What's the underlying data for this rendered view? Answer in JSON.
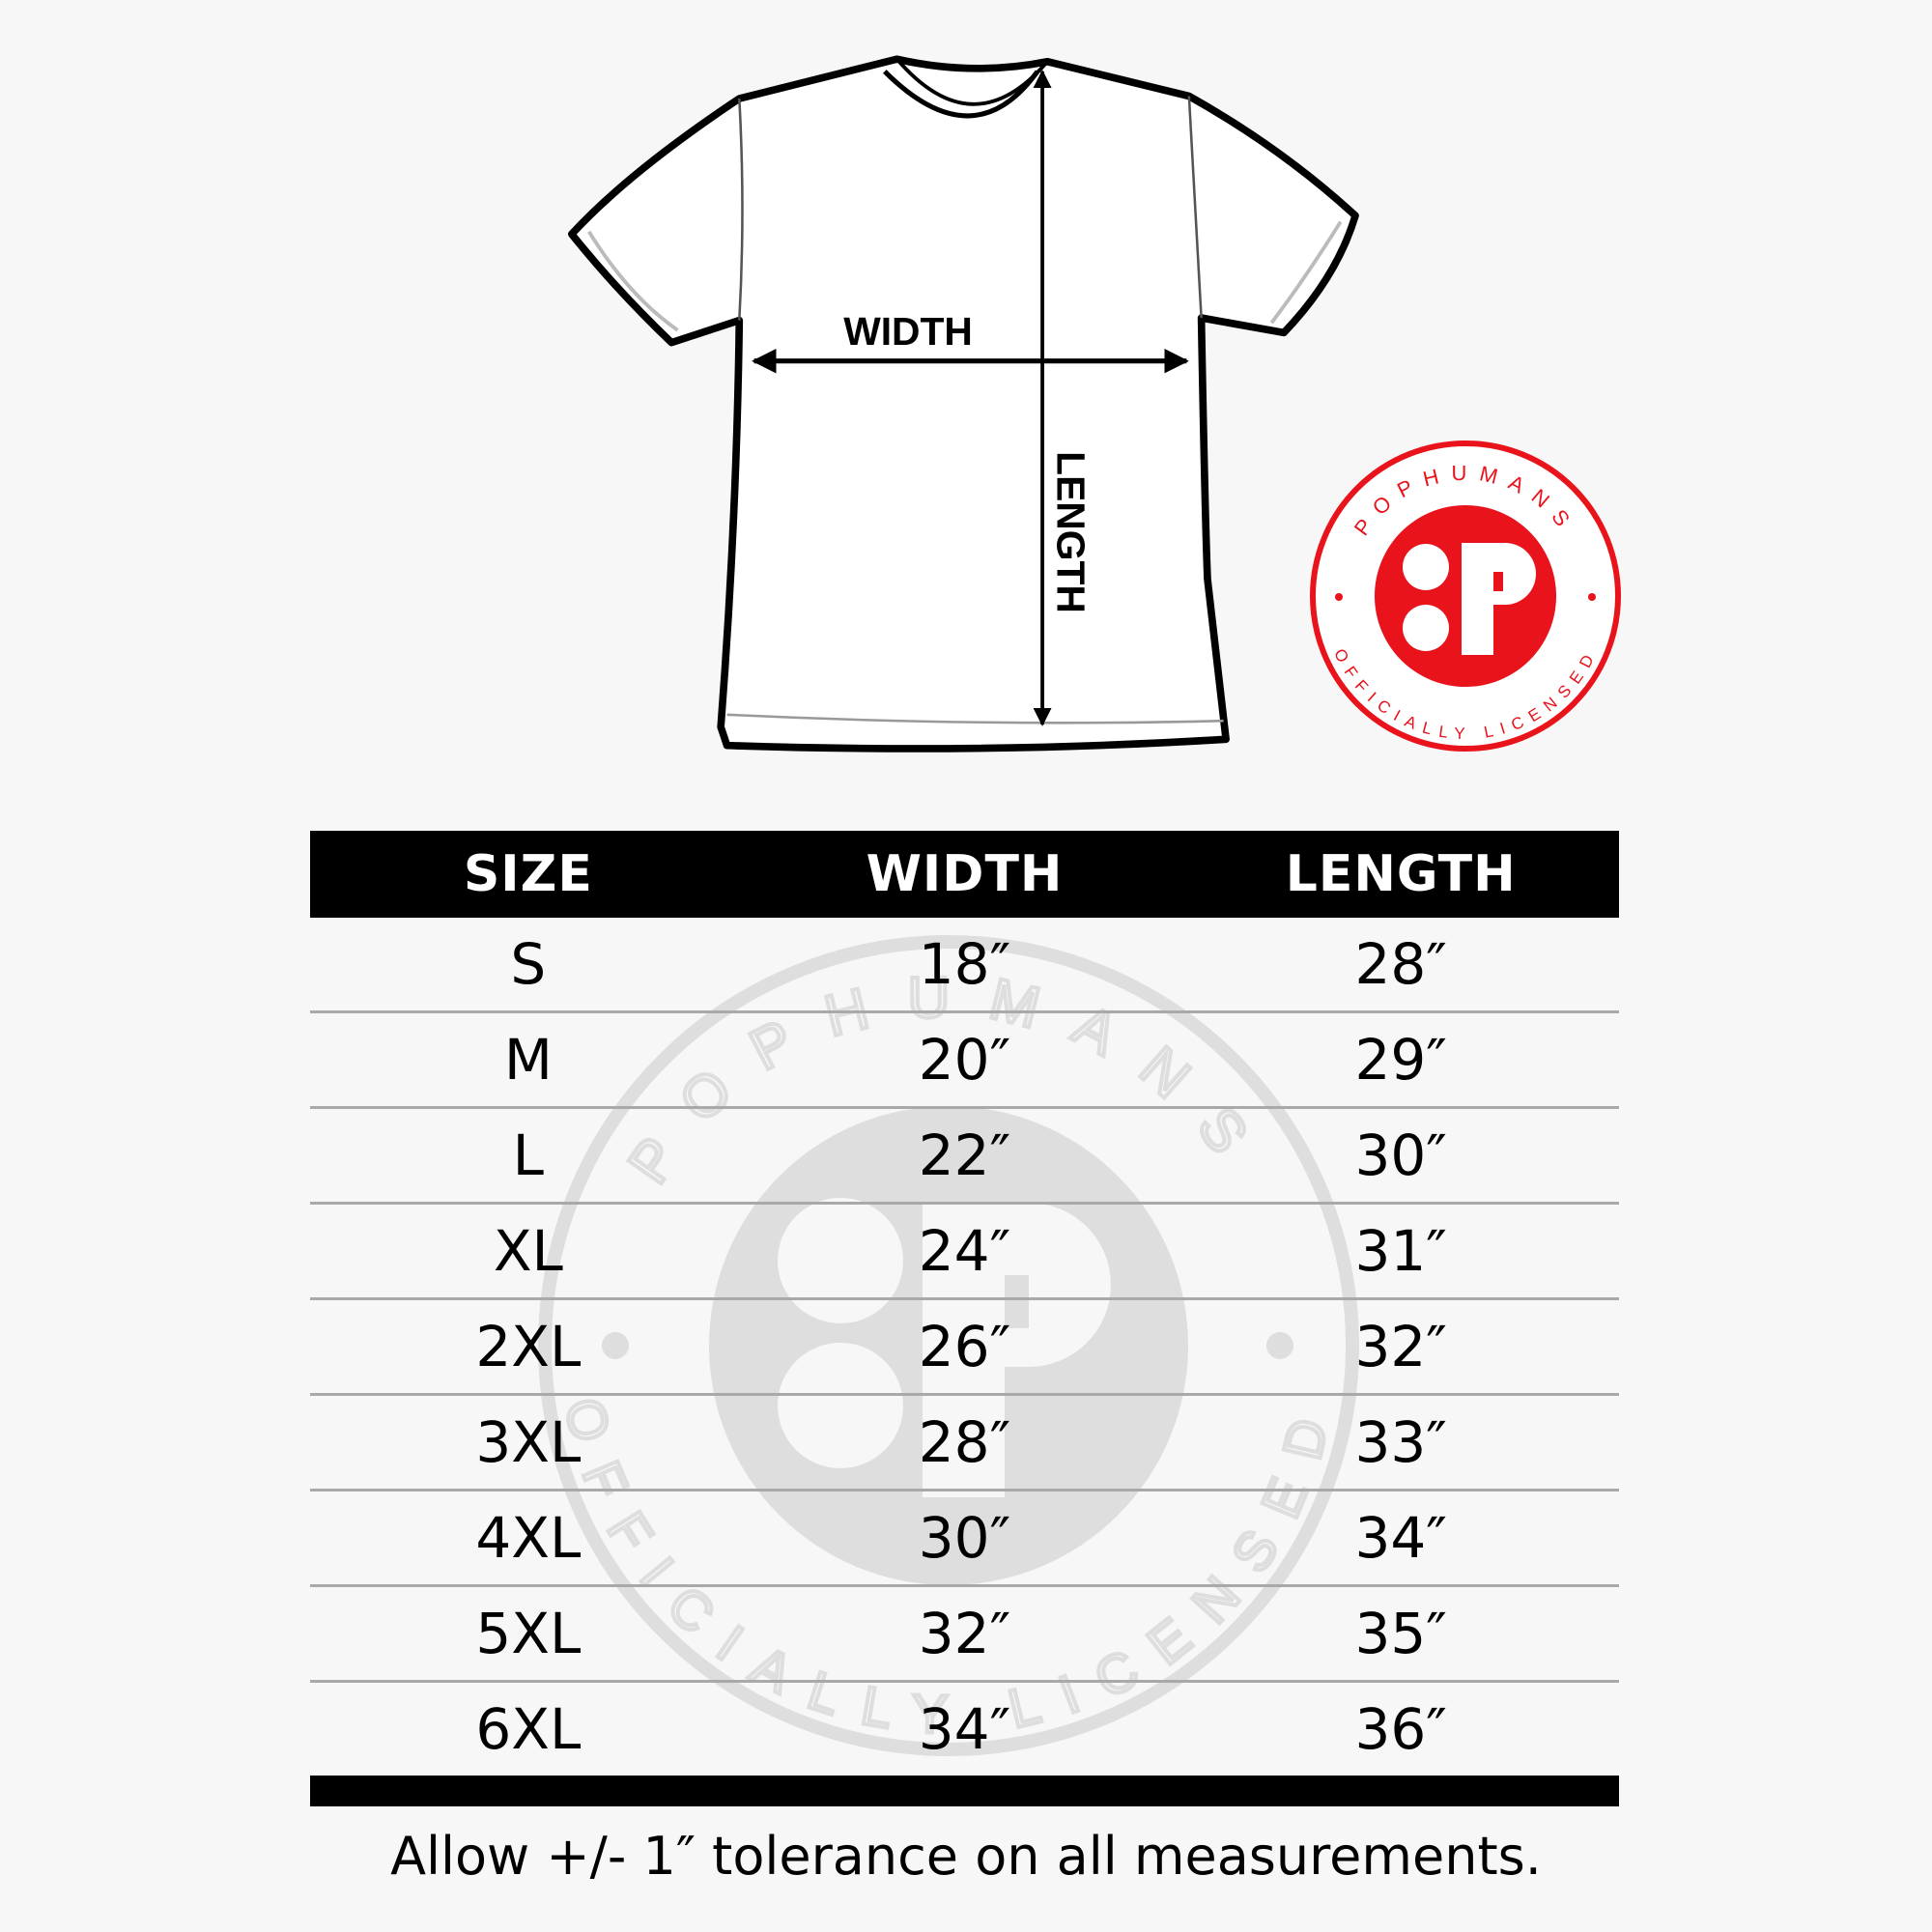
{
  "diagram": {
    "width_label": "WIDTH",
    "length_label": "LENGTH"
  },
  "badge": {
    "top_text": "POPHUMANS",
    "bottom_text": "OFFICIALLY LICENSED",
    "color": "#e8131b"
  },
  "table": {
    "headers": [
      "SIZE",
      "WIDTH",
      "LENGTH"
    ],
    "rows": [
      [
        "S",
        "18″",
        "28″"
      ],
      [
        "M",
        "20″",
        "29″"
      ],
      [
        "L",
        "22″",
        "30″"
      ],
      [
        "XL",
        "24″",
        "31″"
      ],
      [
        "2XL",
        "26″",
        "32″"
      ],
      [
        "3XL",
        "28″",
        "33″"
      ],
      [
        "4XL",
        "30″",
        "34″"
      ],
      [
        "5XL",
        "32″",
        "35″"
      ],
      [
        "6XL",
        "34″",
        "36″"
      ]
    ]
  },
  "note": "Allow +/- 1″ tolerance on all measurements."
}
